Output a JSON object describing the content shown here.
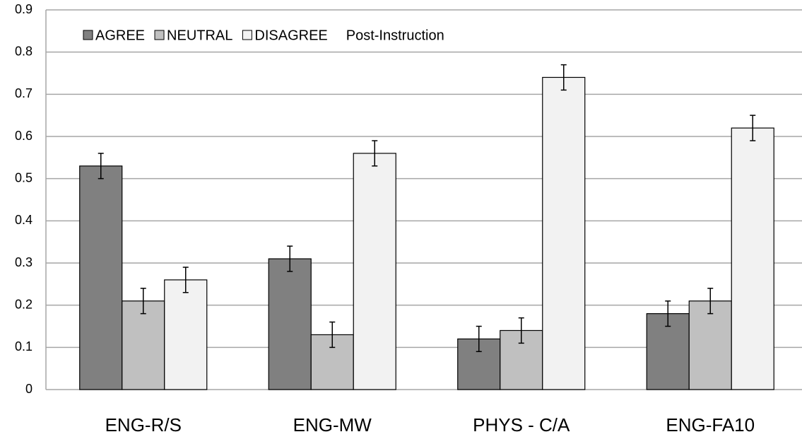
{
  "chart_data": {
    "type": "bar",
    "title": "Post-Instruction",
    "categories": [
      "ENG-R/S",
      "ENG-MW",
      "PHYS - C/A",
      "ENG-FA10"
    ],
    "series": [
      {
        "name": "AGREE",
        "color": "#808080",
        "values": [
          0.53,
          0.31,
          0.12,
          0.18
        ],
        "errors": [
          0.03,
          0.03,
          0.03,
          0.03
        ]
      },
      {
        "name": "NEUTRAL",
        "color": "#c0c0c0",
        "values": [
          0.21,
          0.13,
          0.14,
          0.21
        ],
        "errors": [
          0.03,
          0.03,
          0.03,
          0.03
        ]
      },
      {
        "name": "DISAGREE",
        "color": "#f2f2f2",
        "values": [
          0.26,
          0.56,
          0.74,
          0.62
        ],
        "errors": [
          0.03,
          0.03,
          0.03,
          0.03
        ]
      }
    ],
    "ylim": [
      0,
      0.9
    ],
    "yticks": [
      0,
      0.1,
      0.2,
      0.3,
      0.4,
      0.5,
      0.6,
      0.7,
      0.8,
      0.9
    ],
    "grid": true
  }
}
